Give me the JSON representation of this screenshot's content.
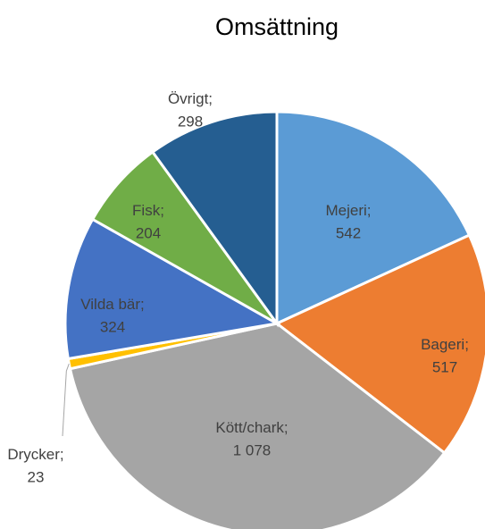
{
  "chart_data": {
    "type": "pie",
    "title": "Omsättning",
    "categories": [
      "Mejeri",
      "Bageri",
      "Kött/chark",
      "Drycker",
      "Vilda bär",
      "Fisk",
      "Övrigt"
    ],
    "values": [
      542,
      517,
      1078,
      23,
      324,
      204,
      298
    ],
    "value_labels": [
      "542",
      "517",
      "1 078",
      "23",
      "324",
      "204",
      "298"
    ],
    "label_separator": ";",
    "colors": [
      "#5b9bd5",
      "#ed7d31",
      "#a5a5a5",
      "#ffc000",
      "#4472c4",
      "#70ad47",
      "#255e91"
    ]
  }
}
